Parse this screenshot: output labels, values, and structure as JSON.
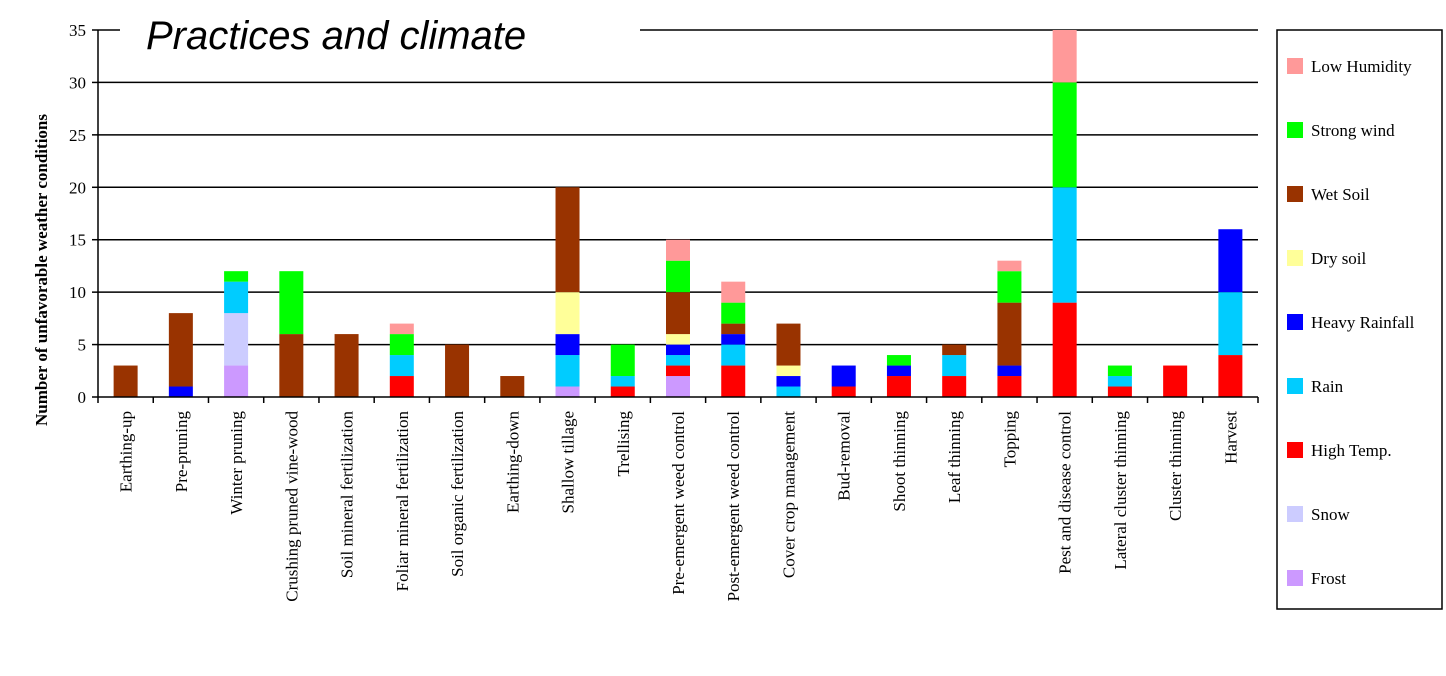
{
  "chart_data": {
    "type": "bar",
    "stacked": true,
    "title": "Practices and climate",
    "ylabel": "Number of unfavorable weather conditions",
    "xlabel": "",
    "ylim": [
      0,
      35
    ],
    "yticks": [
      0,
      5,
      10,
      15,
      20,
      25,
      30,
      35
    ],
    "grid": true,
    "legend_position": "right",
    "categories": [
      "Earthing-up",
      "Pre-pruning",
      "Winter pruning",
      "Crushing pruned vine-wood",
      "Soil mineral fertilization",
      "Foliar mineral fertilization",
      "Soil organic fertilization",
      "Earthing-down",
      "Shallow tillage",
      "Trellising",
      "Pre-emergent weed control",
      "Post-emergent weed control",
      "Cover crop management",
      "Bud-removal",
      "Shoot thinning",
      "Leaf thinning",
      "Topping",
      "Pest and disease control",
      "Lateral cluster thinning",
      "Cluster thinning",
      "Harvest"
    ],
    "series": [
      {
        "name": "Frost",
        "color": "#cc99ff",
        "values": [
          0,
          0,
          3,
          0,
          0,
          0,
          0,
          0,
          1,
          0,
          2,
          0,
          0,
          0,
          0,
          0,
          0,
          0,
          0,
          0,
          0
        ]
      },
      {
        "name": "Snow",
        "color": "#ccccff",
        "values": [
          0,
          0,
          5,
          0,
          0,
          0,
          0,
          0,
          0,
          0,
          0,
          0,
          0,
          0,
          0,
          0,
          0,
          0,
          0,
          0,
          0
        ]
      },
      {
        "name": "High Temp.",
        "color": "#ff0000",
        "values": [
          0,
          0,
          0,
          0,
          0,
          2,
          0,
          0,
          0,
          1,
          1,
          3,
          0,
          1,
          2,
          2,
          2,
          9,
          1,
          3,
          4
        ]
      },
      {
        "name": "Rain",
        "color": "#00ccff",
        "values": [
          0,
          0,
          3,
          0,
          0,
          2,
          0,
          0,
          3,
          1,
          1,
          2,
          1,
          0,
          0,
          2,
          0,
          11,
          1,
          0,
          6
        ]
      },
      {
        "name": "Heavy Rainfall",
        "color": "#0000ff",
        "values": [
          0,
          1,
          0,
          0,
          0,
          0,
          0,
          0,
          2,
          0,
          1,
          1,
          1,
          2,
          1,
          0,
          1,
          0,
          0,
          0,
          6
        ]
      },
      {
        "name": "Dry soil",
        "color": "#ffff99",
        "values": [
          0,
          0,
          0,
          0,
          0,
          0,
          0,
          0,
          4,
          0,
          1,
          0,
          1,
          0,
          0,
          0,
          0,
          0,
          0,
          0,
          0
        ]
      },
      {
        "name": "Wet Soil",
        "color": "#993300",
        "values": [
          3,
          7,
          0,
          6,
          6,
          0,
          5,
          2,
          10,
          0,
          4,
          1,
          4,
          0,
          0,
          1,
          6,
          0,
          0,
          0,
          0
        ]
      },
      {
        "name": "Strong wind",
        "color": "#00ff00",
        "values": [
          0,
          0,
          1,
          6,
          0,
          2,
          0,
          0,
          0,
          3,
          3,
          2,
          0,
          0,
          1,
          0,
          3,
          10,
          1,
          0,
          0
        ]
      },
      {
        "name": "Low Humidity",
        "color": "#ff9999",
        "values": [
          0,
          0,
          0,
          0,
          0,
          1,
          0,
          0,
          0,
          0,
          2,
          2,
          0,
          0,
          0,
          0,
          1,
          5,
          0,
          0,
          0
        ]
      }
    ],
    "legend_order": [
      "Low Humidity",
      "Strong wind",
      "Wet Soil",
      "Dry soil",
      "Heavy Rainfall",
      "Rain",
      "High Temp.",
      "Snow",
      "Frost"
    ]
  }
}
